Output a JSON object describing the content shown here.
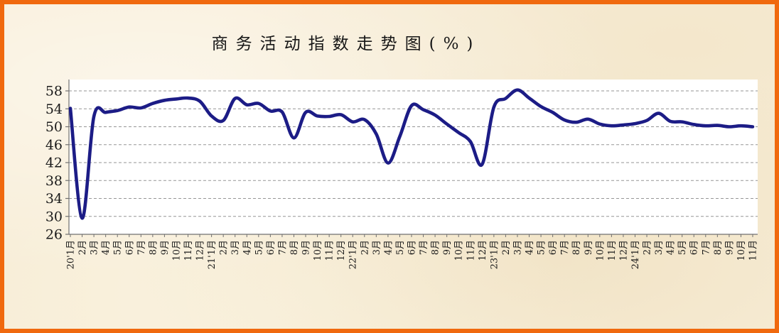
{
  "window": {
    "border_color": "#f0690e",
    "background_color": "#f8eed8"
  },
  "chart_data": {
    "type": "line",
    "title": "商务活动指数走势图(%)",
    "categories": [
      "20'1月",
      "2月",
      "3月",
      "4月",
      "5月",
      "6月",
      "7月",
      "8月",
      "9月",
      "10月",
      "11月",
      "12月",
      "21'1月",
      "2月",
      "3月",
      "4月",
      "5月",
      "6月",
      "7月",
      "8月",
      "9月",
      "10月",
      "11月",
      "12月",
      "22'1月",
      "2月",
      "3月",
      "4月",
      "5月",
      "6月",
      "7月",
      "8月",
      "9月",
      "10月",
      "11月",
      "12月",
      "23'1月",
      "2月",
      "3月",
      "4月",
      "5月",
      "6月",
      "7月",
      "8月",
      "9月",
      "10月",
      "11月",
      "12月",
      "24'1月",
      "2月",
      "3月",
      "4月",
      "5月",
      "6月",
      "7月",
      "8月",
      "9月",
      "10月",
      "11月"
    ],
    "values": [
      54.1,
      29.6,
      52.3,
      53.2,
      53.6,
      54.4,
      54.2,
      55.2,
      55.9,
      56.2,
      56.4,
      55.7,
      52.4,
      51.4,
      56.3,
      54.9,
      55.2,
      53.5,
      53.3,
      47.5,
      53.2,
      52.4,
      52.3,
      52.7,
      51.1,
      51.6,
      48.4,
      41.9,
      47.8,
      54.7,
      53.8,
      52.6,
      50.6,
      48.7,
      46.7,
      41.6,
      54.4,
      56.3,
      58.2,
      56.4,
      54.5,
      53.2,
      51.5,
      51.0,
      51.7,
      50.6,
      50.2,
      50.4,
      50.7,
      51.4,
      53.0,
      51.2,
      51.1,
      50.5,
      50.2,
      50.3,
      50.0,
      50.2,
      50.0
    ],
    "xlabel": "",
    "ylabel": "",
    "yticks": [
      26,
      30,
      34,
      38,
      42,
      46,
      50,
      54,
      58
    ],
    "ylim": [
      26,
      60.5
    ],
    "grid": "horizontal-dashed",
    "legend": "none",
    "line_color": "#1c1c86",
    "plot_bg": "#ffffff",
    "gridline_color": "#969696",
    "axis_color": "#707070"
  }
}
